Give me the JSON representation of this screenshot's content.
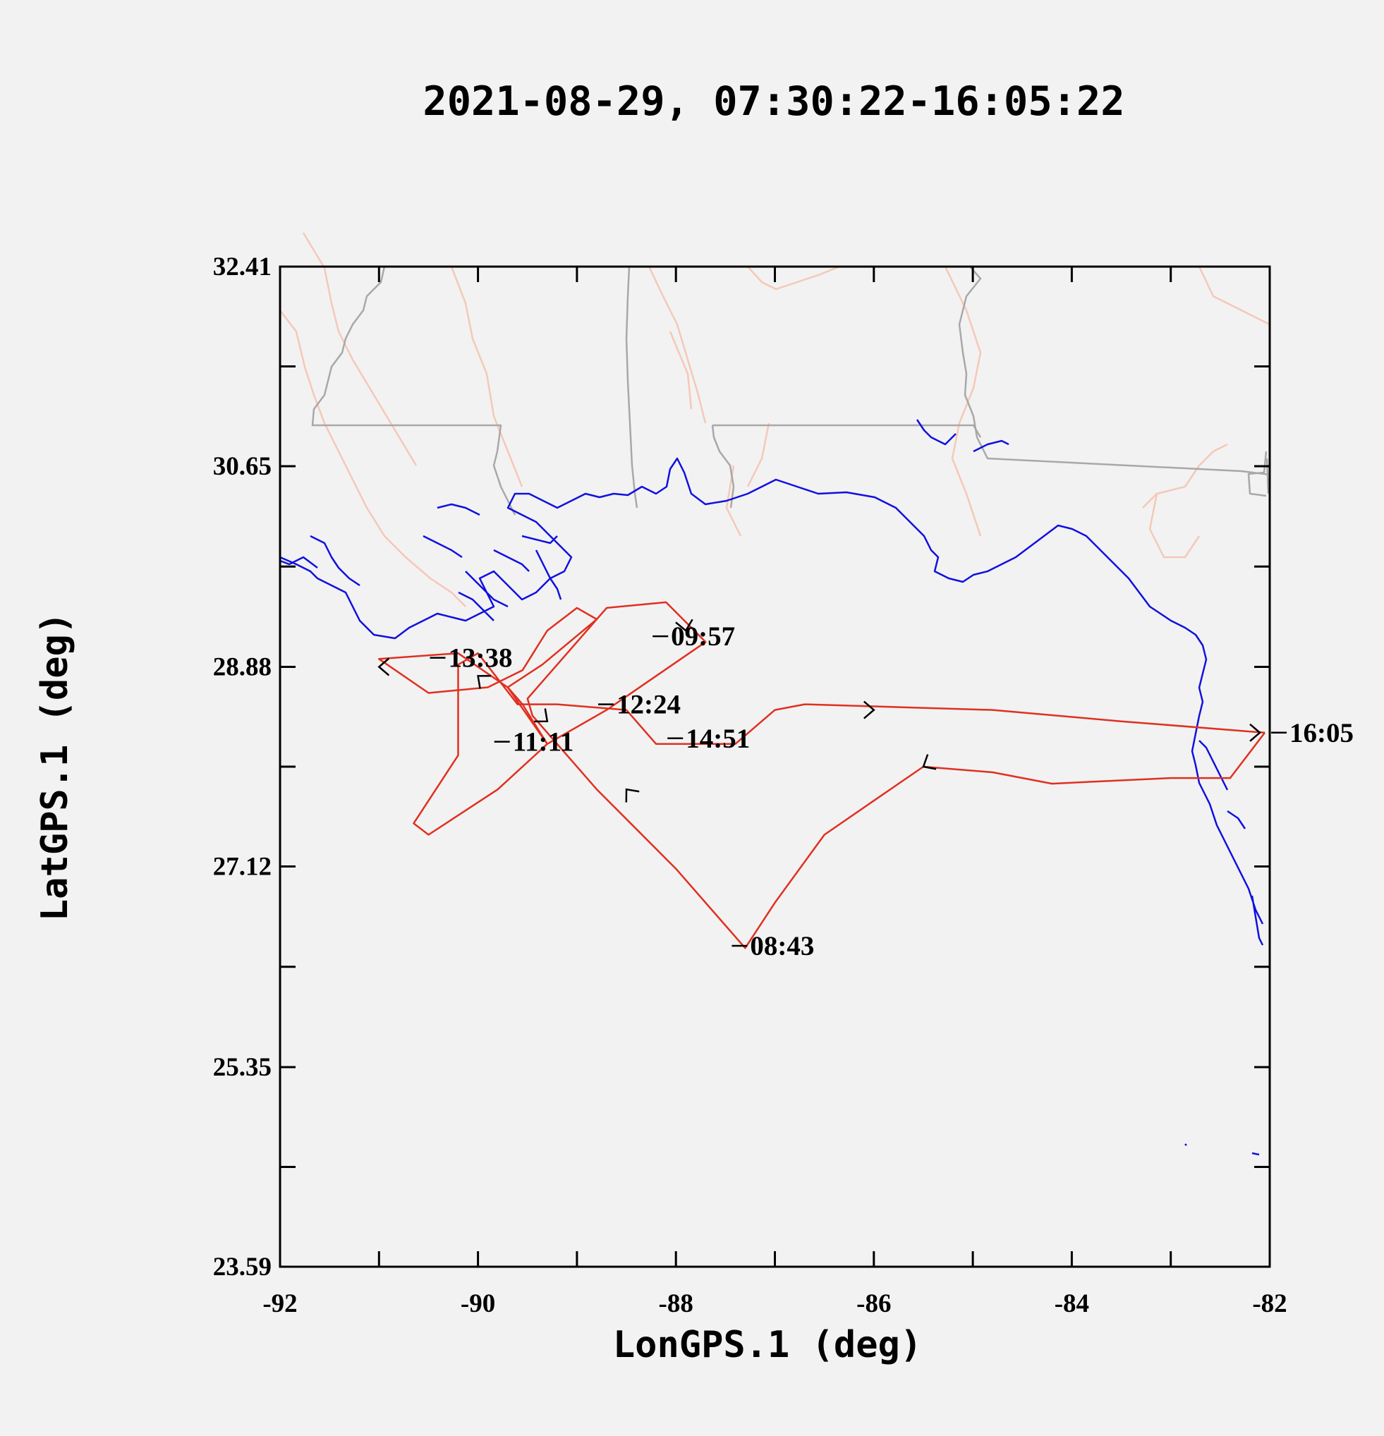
{
  "chart_data": {
    "type": "line",
    "title": "2021-08-29, 07:30:22-16:05:22",
    "xlabel": "LonGPS.1 (deg)",
    "ylabel": "LatGPS.1 (deg)",
    "xlim": [
      -92,
      -82
    ],
    "ylim": [
      23.59,
      32.41
    ],
    "x_ticks": [
      -92,
      -90,
      -88,
      -86,
      -84,
      -82
    ],
    "x_tick_labels": [
      "-92",
      "-90",
      "-88",
      "-86",
      "-84",
      "-82"
    ],
    "y_ticks": [
      32.41,
      30.65,
      28.88,
      27.12,
      25.35,
      23.59
    ],
    "y_tick_labels": [
      "32.41",
      "30.65",
      "28.88",
      "27.12",
      "25.35",
      "23.59"
    ],
    "grid": false,
    "colors": {
      "flight_track": "#e03020",
      "coastline": "#1010e0",
      "state_borders": "#a8a8a8",
      "rivers": "#f5c8b8",
      "axes": "#000000",
      "background": "#f2f2f2"
    },
    "series": [
      {
        "kind": "flight-track",
        "points": [
          [
            -82.05,
            28.3
          ],
          [
            -82.4,
            27.9
          ],
          [
            -83.0,
            27.9
          ],
          [
            -84.2,
            27.85
          ],
          [
            -84.8,
            27.95
          ],
          [
            -85.5,
            28.0
          ],
          [
            -86.0,
            27.7
          ],
          [
            -86.5,
            27.4
          ],
          [
            -87.0,
            26.8
          ],
          [
            -87.3,
            26.4
          ],
          [
            -88.0,
            27.1
          ],
          [
            -88.8,
            27.8
          ],
          [
            -89.2,
            28.2
          ],
          [
            -89.45,
            28.45
          ],
          [
            -89.5,
            28.6
          ],
          [
            -89.15,
            28.95
          ],
          [
            -88.7,
            29.4
          ],
          [
            -88.1,
            29.45
          ],
          [
            -87.7,
            29.1
          ],
          [
            -88.7,
            28.5
          ],
          [
            -89.3,
            28.2
          ],
          [
            -89.55,
            28.55
          ],
          [
            -89.7,
            28.7
          ],
          [
            -89.35,
            28.9
          ],
          [
            -88.8,
            29.3
          ],
          [
            -89.0,
            29.4
          ],
          [
            -89.3,
            29.2
          ],
          [
            -89.55,
            28.85
          ],
          [
            -89.9,
            28.7
          ],
          [
            -90.5,
            28.65
          ],
          [
            -91.0,
            28.95
          ],
          [
            -90.2,
            29.0
          ],
          [
            -89.7,
            28.7
          ],
          [
            -89.5,
            28.45
          ],
          [
            -89.3,
            28.2
          ],
          [
            -89.8,
            27.8
          ],
          [
            -90.5,
            27.4
          ],
          [
            -90.65,
            27.5
          ],
          [
            -90.2,
            28.1
          ],
          [
            -90.2,
            28.9
          ],
          [
            -90.0,
            29.0
          ],
          [
            -89.6,
            28.55
          ],
          [
            -89.2,
            28.55
          ],
          [
            -88.5,
            28.5
          ],
          [
            -88.2,
            28.2
          ],
          [
            -87.4,
            28.2
          ],
          [
            -87.0,
            28.5
          ],
          [
            -86.7,
            28.55
          ],
          [
            -84.8,
            28.5
          ],
          [
            -83.5,
            28.4
          ],
          [
            -82.05,
            28.3
          ]
        ]
      }
    ],
    "annotations": [
      {
        "label": "09:57",
        "x": -88.05,
        "y": 29.15
      },
      {
        "label": "08:43",
        "x": -87.25,
        "y": 26.42
      },
      {
        "label": "11:11",
        "x": -89.65,
        "y": 28.22
      },
      {
        "label": "12:24",
        "x": -88.6,
        "y": 28.55
      },
      {
        "label": "13:38",
        "x": -90.3,
        "y": 28.96
      },
      {
        "label": "14:51",
        "x": -87.9,
        "y": 28.25
      },
      {
        "label": "16:05",
        "x": -81.8,
        "y": 28.3
      }
    ],
    "direction_markers": [
      {
        "x": -88.5,
        "y": 27.8,
        "angle": -130
      },
      {
        "x": -85.5,
        "y": 28.0,
        "angle": 150
      },
      {
        "x": -86.0,
        "y": 28.5,
        "angle": 0
      },
      {
        "x": -82.1,
        "y": 28.3,
        "angle": 0
      },
      {
        "x": -89.3,
        "y": 28.4,
        "angle": 40
      },
      {
        "x": -90.0,
        "y": 28.8,
        "angle": 220
      },
      {
        "x": -87.9,
        "y": 29.2,
        "angle": 80
      },
      {
        "x": -91.0,
        "y": 28.88,
        "angle": 180
      }
    ]
  }
}
